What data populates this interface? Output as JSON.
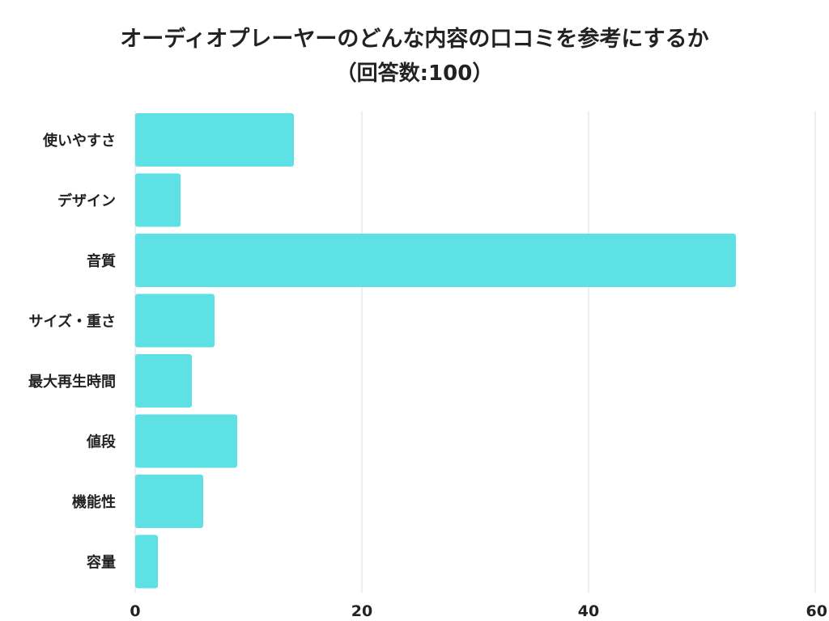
{
  "title": {
    "line1": "オーディオプレーヤーのどんな内容の口コミを参考にするか",
    "line2": "（回答数:100）"
  },
  "colors": {
    "bar": "#5ee1e5",
    "grid": "#dddddd",
    "text": "#222222"
  },
  "chart_data": {
    "type": "bar",
    "orientation": "horizontal",
    "categories": [
      "使いやすさ",
      "デザイン",
      "音質",
      "サイズ・重さ",
      "最大再生時間",
      "値段",
      "機能性",
      "容量"
    ],
    "values": [
      14,
      4,
      53,
      7,
      5,
      9,
      6,
      2
    ],
    "xlim": [
      0,
      60
    ],
    "xticks": [
      "0",
      "20",
      "40",
      "60"
    ],
    "grid": true
  }
}
